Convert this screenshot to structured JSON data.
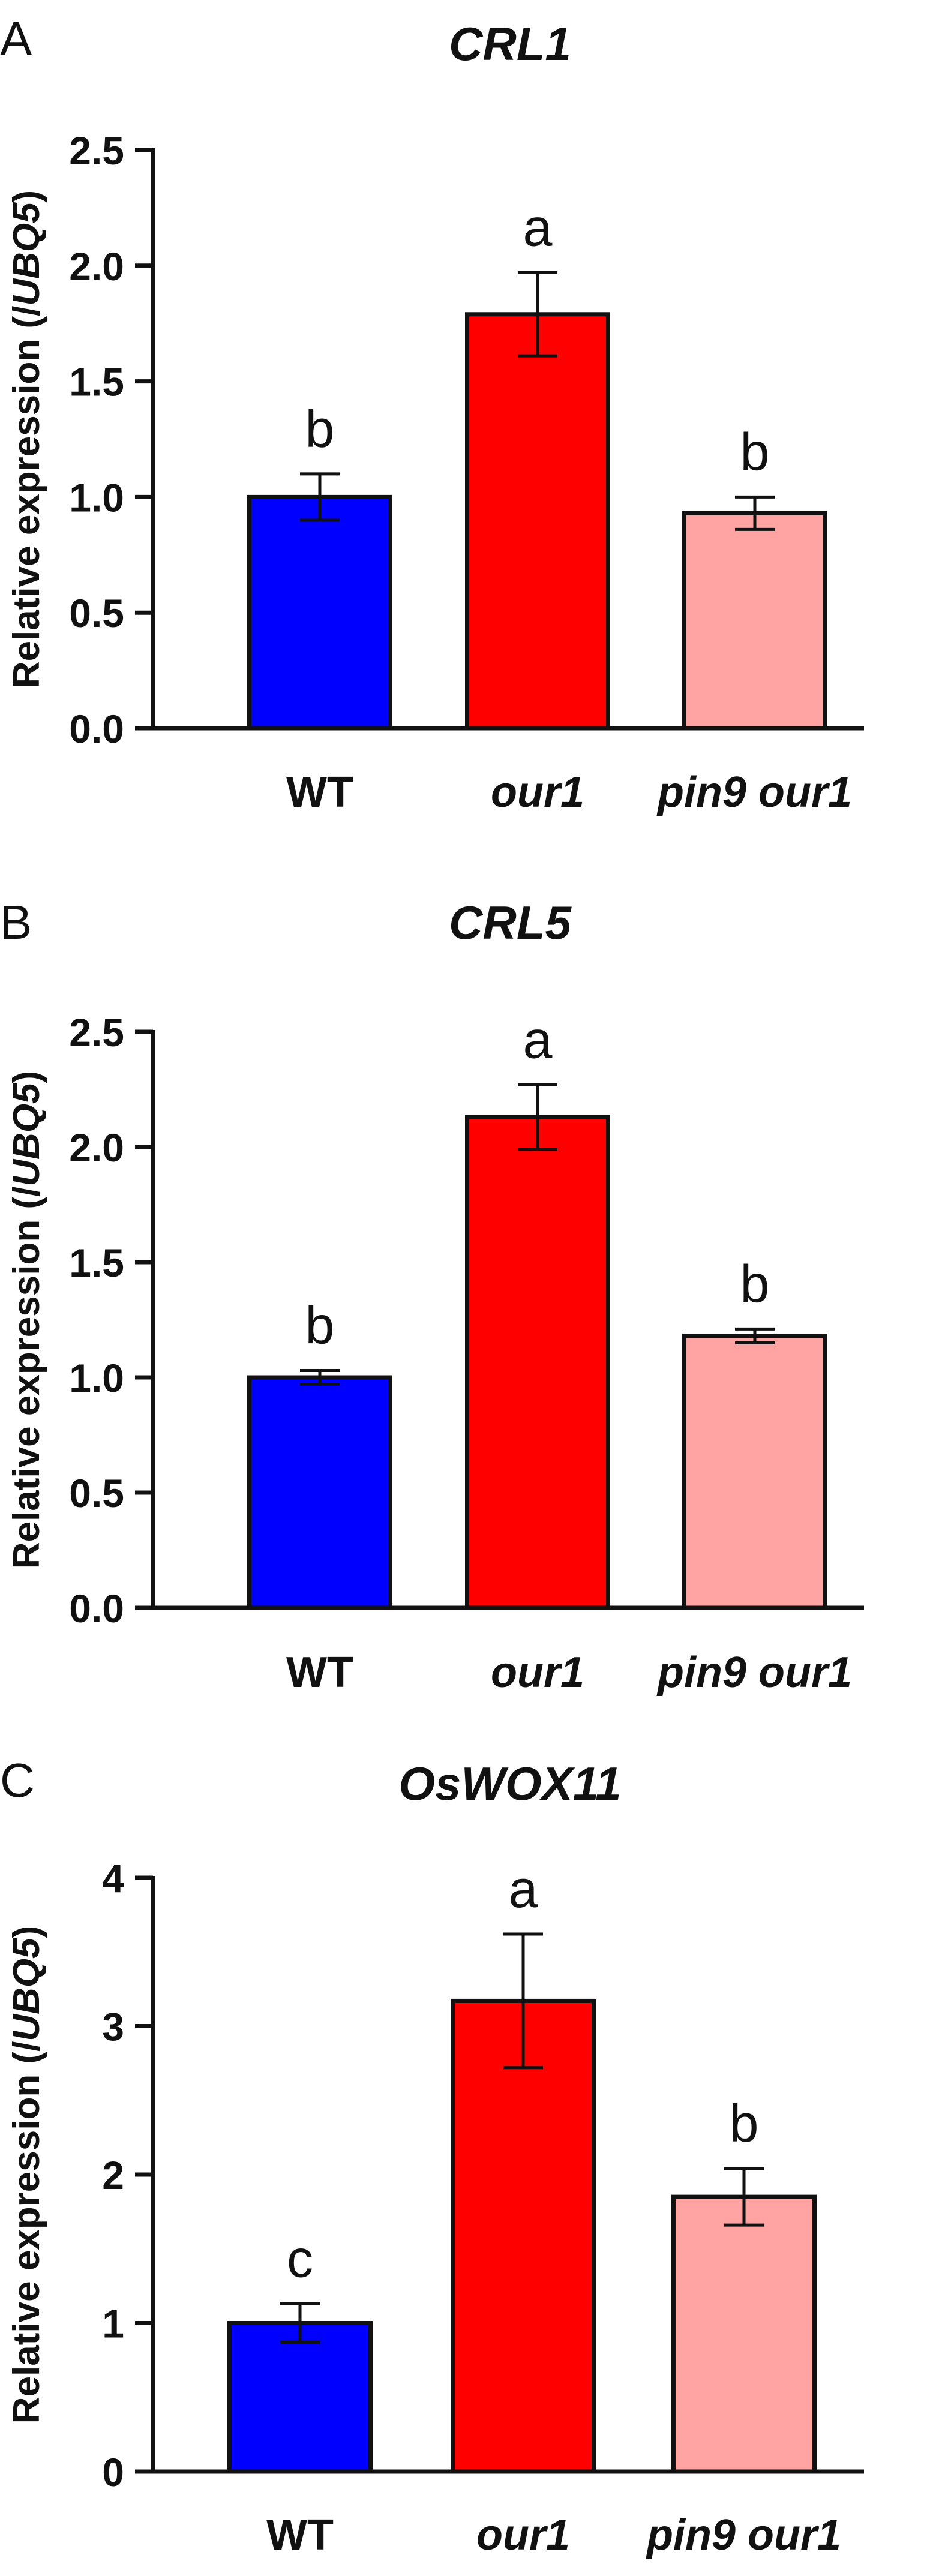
{
  "figure": {
    "colors": {
      "axis": "#111111",
      "wt": "#0000ff",
      "our1": "#ff0000",
      "pin9_our1": "#ffa3a3"
    }
  },
  "chart_data": [
    {
      "panel_label": "A",
      "type": "bar",
      "title": "CRL1",
      "title_italic": true,
      "ylabel_parts": [
        {
          "text": "Relative expression (/",
          "italic": false
        },
        {
          "text": "UBQ5",
          "italic": true
        },
        {
          "text": ")",
          "italic": false
        }
      ],
      "ylim": [
        0,
        2.5
      ],
      "yticks": [
        0.0,
        0.5,
        1.0,
        1.5,
        2.0,
        2.5
      ],
      "ytick_labels": [
        "0.0",
        "0.5",
        "1.0",
        "1.5",
        "2.0",
        "2.5"
      ],
      "categories": [
        "WT",
        "our1",
        "pin9 our1"
      ],
      "category_italic": [
        false,
        true,
        true
      ],
      "values": [
        1.0,
        1.79,
        0.93
      ],
      "errors": [
        0.1,
        0.18,
        0.07
      ],
      "significance": [
        "b",
        "a",
        "b"
      ],
      "colors": [
        "#0000ff",
        "#ff0000",
        "#ffa3a3"
      ],
      "grid": false
    },
    {
      "panel_label": "B",
      "type": "bar",
      "title": "CRL5",
      "title_italic": true,
      "ylabel_parts": [
        {
          "text": "Relative expression (/",
          "italic": false
        },
        {
          "text": "UBQ5",
          "italic": true
        },
        {
          "text": ")",
          "italic": false
        }
      ],
      "ylim": [
        0,
        2.5
      ],
      "yticks": [
        0.0,
        0.5,
        1.0,
        1.5,
        2.0,
        2.5
      ],
      "ytick_labels": [
        "0.0",
        "0.5",
        "1.0",
        "1.5",
        "2.0",
        "2.5"
      ],
      "categories": [
        "WT",
        "our1",
        "pin9 our1"
      ],
      "category_italic": [
        false,
        true,
        true
      ],
      "values": [
        1.0,
        2.13,
        1.18
      ],
      "errors": [
        0.03,
        0.14,
        0.03
      ],
      "significance": [
        "b",
        "a",
        "b"
      ],
      "colors": [
        "#0000ff",
        "#ff0000",
        "#ffa3a3"
      ],
      "grid": false
    },
    {
      "panel_label": "C",
      "type": "bar",
      "title": "OsWOX11",
      "title_italic": true,
      "ylabel_parts": [
        {
          "text": "Relative expression (/",
          "italic": false
        },
        {
          "text": "UBQ5",
          "italic": true
        },
        {
          "text": ")",
          "italic": false
        }
      ],
      "ylim": [
        0,
        4
      ],
      "yticks": [
        0,
        1,
        2,
        3,
        4
      ],
      "ytick_labels": [
        "0",
        "1",
        "2",
        "3",
        "4"
      ],
      "categories": [
        "WT",
        "our1",
        "pin9 our1"
      ],
      "category_italic": [
        false,
        true,
        true
      ],
      "values": [
        1.0,
        3.17,
        1.85
      ],
      "errors": [
        0.13,
        0.45,
        0.19
      ],
      "significance": [
        "c",
        "a",
        "b"
      ],
      "colors": [
        "#0000ff",
        "#ff0000",
        "#ffa3a3"
      ],
      "grid": false
    }
  ]
}
